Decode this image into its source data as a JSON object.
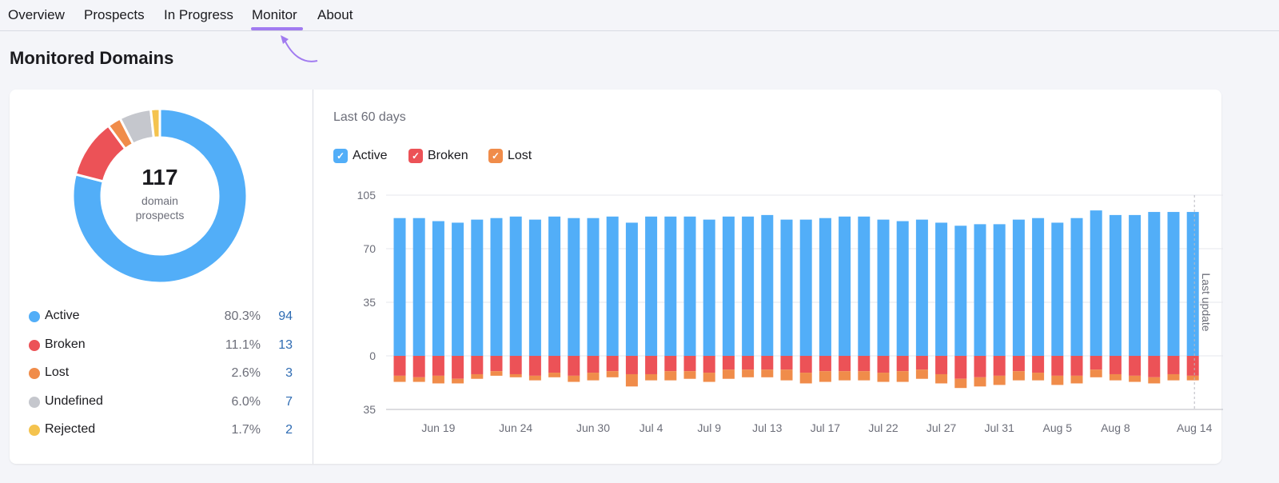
{
  "nav": {
    "items": [
      {
        "label": "Overview"
      },
      {
        "label": "Prospects"
      },
      {
        "label": "In Progress"
      },
      {
        "label": "Monitor",
        "active": true
      },
      {
        "label": "About"
      }
    ]
  },
  "page_title": "Monitored Domains",
  "summary": {
    "total": "117",
    "total_label_1": "domain",
    "total_label_2": "prospects",
    "items": [
      {
        "name": "Active",
        "pct": "80.3%",
        "count": "94",
        "value": 94,
        "color": "#52aef8"
      },
      {
        "name": "Broken",
        "pct": "11.1%",
        "count": "13",
        "value": 13,
        "color": "#ec5257"
      },
      {
        "name": "Lost",
        "pct": "2.6%",
        "count": "3",
        "value": 3,
        "color": "#f08c4a"
      },
      {
        "name": "Undefined",
        "pct": "6.0%",
        "count": "7",
        "value": 7,
        "color": "#c5c7cd"
      },
      {
        "name": "Rejected",
        "pct": "1.7%",
        "count": "2",
        "value": 2,
        "color": "#f4c34e"
      }
    ]
  },
  "chart_data": {
    "type": "bar",
    "title": "Last 60 days",
    "legend": [
      {
        "name": "Active",
        "color": "#52aef8",
        "checked": true
      },
      {
        "name": "Broken",
        "color": "#ec5257",
        "checked": true
      },
      {
        "name": "Lost",
        "color": "#f08c4a",
        "checked": true
      }
    ],
    "yticks": [
      {
        "value": 105,
        "label": "105"
      },
      {
        "value": 70,
        "label": "70"
      },
      {
        "value": 35,
        "label": "35"
      },
      {
        "value": 0,
        "label": "0"
      },
      {
        "value": -35,
        "label": "35"
      }
    ],
    "ylim": [
      -35,
      105
    ],
    "x_ticks": [
      {
        "label": "Jun 19",
        "index": 2
      },
      {
        "label": "Jun 24",
        "index": 6
      },
      {
        "label": "Jun 30",
        "index": 10
      },
      {
        "label": "Jul 4",
        "index": 13
      },
      {
        "label": "Jul 9",
        "index": 16
      },
      {
        "label": "Jul 13",
        "index": 19
      },
      {
        "label": "Jul 17",
        "index": 22
      },
      {
        "label": "Jul 22",
        "index": 25
      },
      {
        "label": "Jul 27",
        "index": 28
      },
      {
        "label": "Jul 31",
        "index": 31
      },
      {
        "label": "Aug 5",
        "index": 34
      },
      {
        "label": "Aug 8",
        "index": 37
      },
      {
        "label": "Aug 14",
        "index": 41
      }
    ],
    "series": [
      {
        "name": "Active",
        "direction": "up",
        "values": [
          90,
          90,
          88,
          87,
          89,
          90,
          91,
          89,
          91,
          90,
          90,
          91,
          87,
          91,
          91,
          91,
          89,
          91,
          91,
          92,
          89,
          89,
          90,
          91,
          91,
          89,
          88,
          89,
          87,
          85,
          86,
          86,
          89,
          90,
          87,
          90,
          95,
          92,
          92,
          94,
          94,
          94
        ]
      },
      {
        "name": "Broken",
        "direction": "down",
        "values": [
          13,
          14,
          13,
          15,
          12,
          10,
          12,
          13,
          11,
          13,
          11,
          10,
          12,
          12,
          10,
          10,
          11,
          9,
          9,
          9,
          9,
          11,
          10,
          10,
          10,
          11,
          10,
          9,
          12,
          15,
          14,
          13,
          10,
          11,
          13,
          13,
          9,
          12,
          13,
          14,
          12,
          13
        ]
      },
      {
        "name": "Lost",
        "direction": "down",
        "values": [
          4,
          3,
          5,
          3,
          3,
          3,
          2,
          3,
          3,
          4,
          5,
          4,
          8,
          4,
          6,
          5,
          6,
          6,
          5,
          5,
          7,
          7,
          7,
          6,
          6,
          6,
          7,
          6,
          6,
          6,
          6,
          6,
          6,
          5,
          6,
          5,
          5,
          4,
          4,
          4,
          4,
          3
        ]
      }
    ],
    "marker": {
      "label": "Last update",
      "index": 41
    }
  }
}
